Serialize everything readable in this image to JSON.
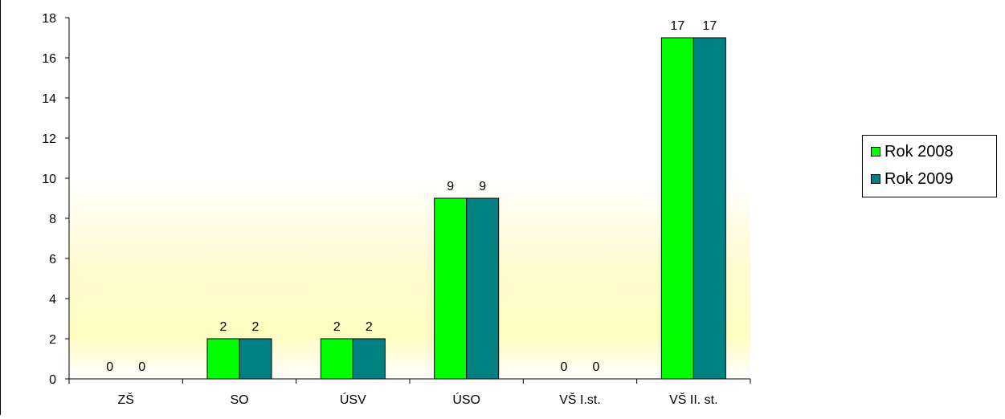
{
  "chart_data": {
    "type": "bar",
    "categories": [
      "ZŠ",
      "SO",
      "ÚSV",
      "ÚSO",
      "VŠ I.st.",
      "VŠ II. st."
    ],
    "series": [
      {
        "name": "Rok 2008",
        "values": [
          0,
          2,
          2,
          9,
          0,
          17
        ],
        "color": "#00ff00"
      },
      {
        "name": "Rok 2009",
        "values": [
          0,
          2,
          2,
          9,
          0,
          17
        ],
        "color": "#008080"
      }
    ],
    "yticks": [
      "0",
      "2",
      "4",
      "6",
      "8",
      "10",
      "12",
      "14",
      "16",
      "18"
    ],
    "ylim": [
      0,
      18
    ],
    "data_labels": true,
    "grid": false,
    "legend_position": "right",
    "plot_background": "light yellow gradient",
    "title": "",
    "xlabel": "",
    "ylabel": ""
  }
}
